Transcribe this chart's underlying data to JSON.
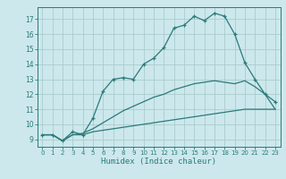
{
  "xlabel": "Humidex (Indice chaleur)",
  "background_color": "#cce8ec",
  "grid_color": "#aacccc",
  "line_color": "#2a7a7a",
  "spine_color": "#2a7a7a",
  "xlim": [
    -0.5,
    23.5
  ],
  "ylim": [
    8.5,
    17.8
  ],
  "xticks": [
    0,
    1,
    2,
    3,
    4,
    5,
    6,
    7,
    8,
    9,
    10,
    11,
    12,
    13,
    14,
    15,
    16,
    17,
    18,
    19,
    20,
    21,
    22,
    23
  ],
  "yticks": [
    9,
    10,
    11,
    12,
    13,
    14,
    15,
    16,
    17
  ],
  "line1_x": [
    0,
    1,
    2,
    3,
    4,
    5,
    6,
    7,
    8,
    9,
    10,
    11,
    12,
    13,
    14,
    15,
    16,
    17,
    18,
    19,
    20,
    21,
    22,
    23
  ],
  "line1_y": [
    9.3,
    9.3,
    8.9,
    9.5,
    9.3,
    10.4,
    12.2,
    13.0,
    13.1,
    13.0,
    14.0,
    14.4,
    15.1,
    16.4,
    16.6,
    17.2,
    16.9,
    17.4,
    17.2,
    16.0,
    14.1,
    13.0,
    12.0,
    11.5
  ],
  "line2_x": [
    0,
    1,
    2,
    3,
    4,
    5,
    6,
    7,
    8,
    9,
    10,
    11,
    12,
    13,
    14,
    15,
    16,
    17,
    18,
    19,
    20,
    21,
    22,
    23
  ],
  "line2_y": [
    9.3,
    9.3,
    8.9,
    9.3,
    9.3,
    9.5,
    9.6,
    9.7,
    9.8,
    9.9,
    10.0,
    10.1,
    10.2,
    10.3,
    10.4,
    10.5,
    10.6,
    10.7,
    10.8,
    10.9,
    11.0,
    11.0,
    11.0,
    11.0
  ],
  "line3_x": [
    0,
    1,
    2,
    3,
    4,
    5,
    6,
    7,
    8,
    9,
    10,
    11,
    12,
    13,
    14,
    15,
    16,
    17,
    18,
    19,
    20,
    21,
    22,
    23
  ],
  "line3_y": [
    9.3,
    9.3,
    8.9,
    9.3,
    9.4,
    9.7,
    10.1,
    10.5,
    10.9,
    11.2,
    11.5,
    11.8,
    12.0,
    12.3,
    12.5,
    12.7,
    12.8,
    12.9,
    12.8,
    12.7,
    12.9,
    12.5,
    12.0,
    11.0
  ]
}
